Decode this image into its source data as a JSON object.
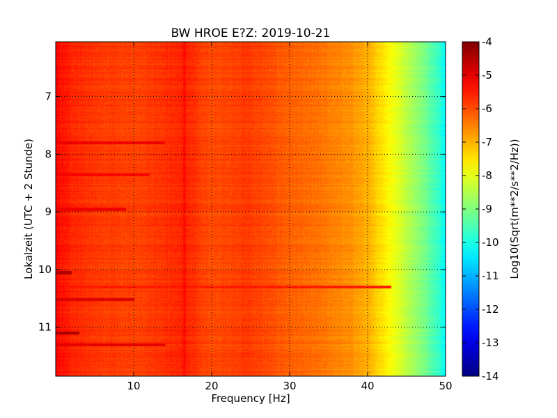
{
  "chart_data": {
    "type": "heatmap",
    "title": "BW HROE E?Z: 2019-10-21",
    "xlabel": "Frequency [Hz]",
    "ylabel": "Lokalzeit (UTC + 2 Stunde)",
    "xlim": [
      0,
      50
    ],
    "ylim": [
      11.85,
      6.05
    ],
    "x_ticks": [
      10,
      20,
      30,
      40,
      50
    ],
    "y_ticks": [
      7,
      8,
      9,
      10,
      11
    ],
    "grid": true,
    "grid_style": "dotted",
    "colormap": "jet",
    "colorbar": {
      "label": "Log10(Sqrt(m**2/s**2/Hz))",
      "range": [
        -14,
        -4
      ],
      "ticks": [
        -4,
        -5,
        -6,
        -7,
        -8,
        -9,
        -10,
        -11,
        -12,
        -13,
        -14
      ]
    },
    "frequency_profile": {
      "frequency_hz": [
        0,
        0.5,
        2,
        5,
        10,
        16.5,
        20,
        24.5,
        30,
        34,
        38,
        40,
        42,
        43,
        45,
        47,
        49,
        50
      ],
      "log10_amplitude": [
        -5.3,
        -5.4,
        -5.6,
        -5.8,
        -5.9,
        -5.6,
        -6.0,
        -5.8,
        -6.2,
        -6.4,
        -6.7,
        -7.0,
        -7.5,
        -7.8,
        -8.4,
        -9.0,
        -9.7,
        -10.3
      ]
    },
    "bands": [
      {
        "time_h": 7.8,
        "f_max_hz": 14,
        "log10_amplitude": -5.1
      },
      {
        "time_h": 8.35,
        "f_max_hz": 12,
        "log10_amplitude": -5.2
      },
      {
        "time_h": 8.95,
        "f_max_hz": 9,
        "log10_amplitude": -5.1
      },
      {
        "time_h": 10.05,
        "f_max_hz": 2,
        "log10_amplitude": -4.5
      },
      {
        "time_h": 10.3,
        "f_max_hz": 43,
        "log10_amplitude": -5.5
      },
      {
        "time_h": 10.52,
        "f_max_hz": 10,
        "log10_amplitude": -4.9
      },
      {
        "time_h": 11.1,
        "f_max_hz": 3,
        "log10_amplitude": -4.4
      },
      {
        "time_h": 11.3,
        "f_max_hz": 14,
        "log10_amplitude": -5.0
      }
    ]
  }
}
